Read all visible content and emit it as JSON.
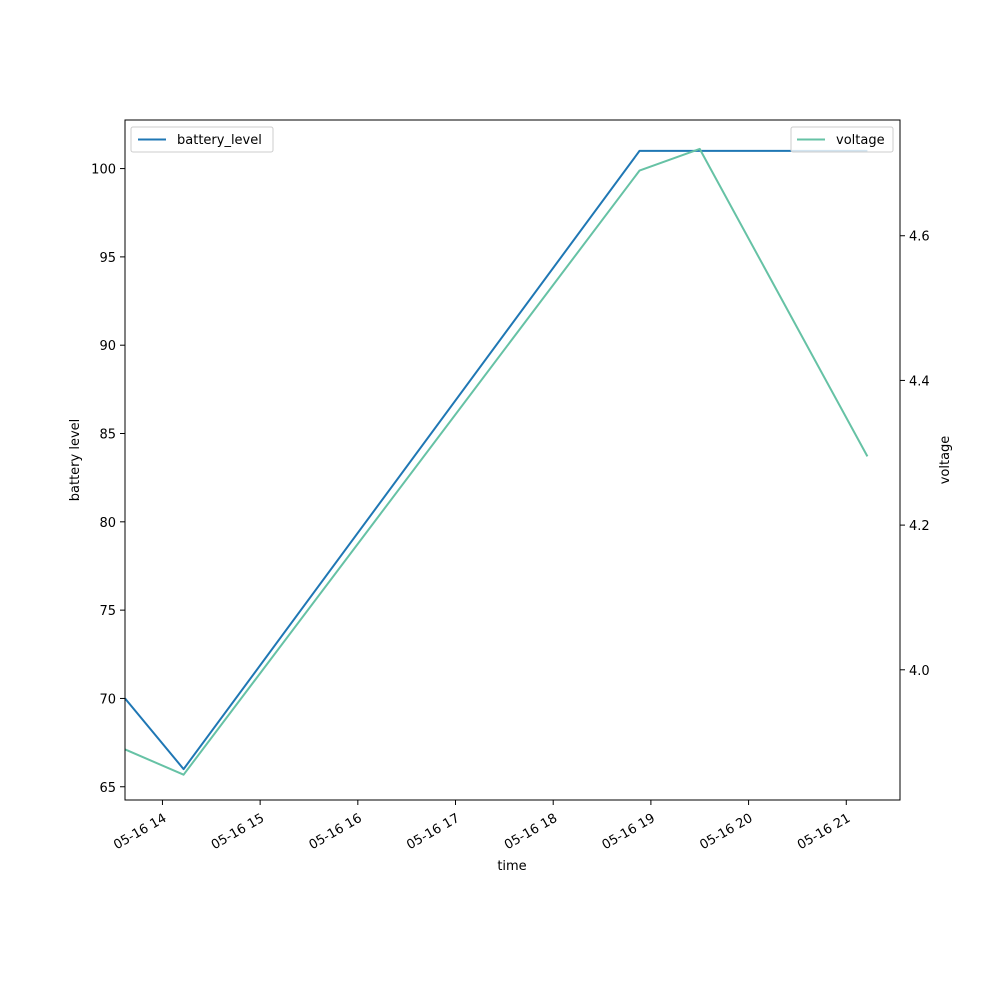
{
  "chart_data": {
    "type": "line",
    "title": "",
    "xlabel": "time",
    "ylabel_left": "battery level",
    "ylabel_right": "voltage",
    "x_ticks": [
      "05-16 14",
      "05-16 15",
      "05-16 16",
      "05-16 17",
      "05-16 18",
      "05-16 19",
      "05-16 20",
      "05-16 21"
    ],
    "xlim": [
      "2024-05-16 13:37",
      "2024-05-16 21:33"
    ],
    "y_left_ticks": [
      65,
      70,
      75,
      80,
      85,
      90,
      95,
      100
    ],
    "y_left_lim": [
      64.25,
      102.75
    ],
    "y_right_ticks": [
      "4.0",
      "4.2",
      "4.4",
      "4.6"
    ],
    "y_right_lim": [
      3.82,
      4.76
    ],
    "legend_left": "upper-left",
    "legend_right": "upper-right",
    "grid": false,
    "series": [
      {
        "name": "battery_level",
        "axis": "left",
        "color": "#1f77b4",
        "x": [
          "2024-05-16 13:37",
          "2024-05-16 14:13",
          "2024-05-16 18:53",
          "2024-05-16 21:13"
        ],
        "y": [
          70,
          66,
          101,
          101
        ]
      },
      {
        "name": "voltage",
        "axis": "right",
        "color": "#66c2a5",
        "x": [
          "2024-05-16 13:37",
          "2024-05-16 14:13",
          "2024-05-16 18:53",
          "2024-05-16 19:30",
          "2024-05-16 21:13"
        ],
        "y": [
          3.89,
          3.855,
          4.69,
          4.72,
          4.295
        ]
      }
    ]
  }
}
